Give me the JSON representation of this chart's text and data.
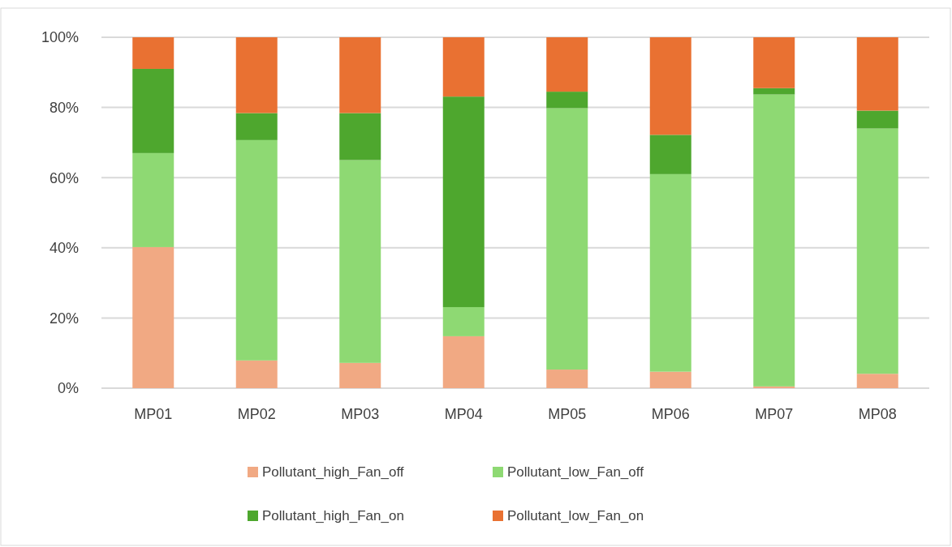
{
  "chart_data": {
    "type": "bar",
    "stacked": true,
    "categories": [
      "MP01",
      "MP02",
      "MP03",
      "MP04",
      "MP05",
      "MP06",
      "MP07",
      "MP08"
    ],
    "series": [
      {
        "name": "Pollutant_high_Fan_off",
        "color": "#f1a983",
        "values": [
          40.2,
          7.9,
          7.2,
          14.8,
          5.3,
          4.7,
          0.5,
          4.1
        ]
      },
      {
        "name": "Pollutant_low_Fan_off",
        "color": "#8ed973",
        "values": [
          26.8,
          62.8,
          57.8,
          8.3,
          74.5,
          56.3,
          83.2,
          69.9
        ]
      },
      {
        "name": "Pollutant_high_Fan_on",
        "color": "#4ea72e",
        "values": [
          24,
          7.7,
          13.4,
          60,
          4.7,
          11.2,
          1.8,
          5.1
        ]
      },
      {
        "name": "Pollutant_low_Fan_on",
        "color": "#e97132",
        "values": [
          9,
          21.6,
          21.6,
          16.9,
          15.5,
          27.8,
          14.5,
          20.9
        ]
      }
    ],
    "ylim": [
      0,
      100
    ],
    "yticks": [
      {
        "value": 0,
        "label": "0%"
      },
      {
        "value": 20,
        "label": "20%"
      },
      {
        "value": 40,
        "label": "40%"
      },
      {
        "value": 60,
        "label": "60%"
      },
      {
        "value": 80,
        "label": "80%"
      },
      {
        "value": 100,
        "label": "100%"
      }
    ],
    "grid": "y",
    "legend": "bottom"
  }
}
